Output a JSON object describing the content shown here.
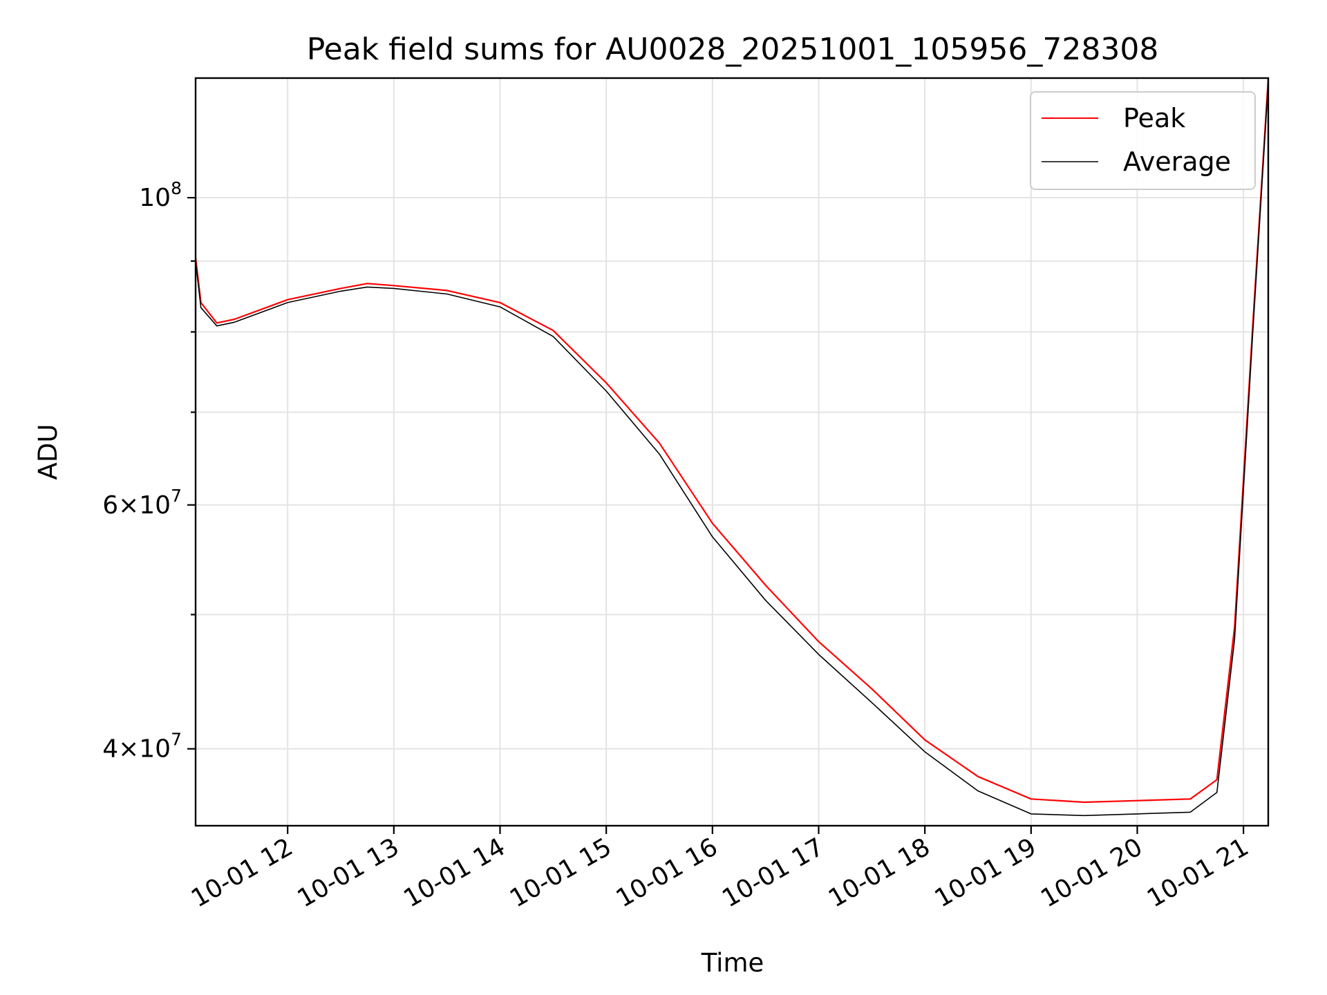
{
  "chart_data": {
    "type": "line",
    "title": "Peak field sums for AU0028_20251001_105956_728308",
    "xlabel": "Time",
    "ylabel": "ADU",
    "yscale": "log",
    "ylim": [
      35200000,
      122000000
    ],
    "xlim": [
      "2025-10-01 11:08",
      "2025-10-01 21:14"
    ],
    "grid": true,
    "legend_position": "top-right",
    "x_ticks": [
      {
        "t": "2025-10-01 12:00",
        "label": "10-01 12"
      },
      {
        "t": "2025-10-01 13:00",
        "label": "10-01 13"
      },
      {
        "t": "2025-10-01 14:00",
        "label": "10-01 14"
      },
      {
        "t": "2025-10-01 15:00",
        "label": "10-01 15"
      },
      {
        "t": "2025-10-01 16:00",
        "label": "10-01 16"
      },
      {
        "t": "2025-10-01 17:00",
        "label": "10-01 17"
      },
      {
        "t": "2025-10-01 18:00",
        "label": "10-01 18"
      },
      {
        "t": "2025-10-01 19:00",
        "label": "10-01 19"
      },
      {
        "t": "2025-10-01 20:00",
        "label": "10-01 20"
      },
      {
        "t": "2025-10-01 21:00",
        "label": "10-01 21"
      }
    ],
    "y_ticks": [
      {
        "value": 40000000,
        "mantissa": "4",
        "exp": "7"
      },
      {
        "value": 60000000,
        "mantissa": "6",
        "exp": "7"
      },
      {
        "value": 100000000,
        "mantissa": "",
        "exp": "8"
      }
    ],
    "y_minor_ticks": [
      50000000,
      70000000,
      80000000,
      90000000
    ],
    "series": [
      {
        "name": "Peak",
        "color": "#ff0000",
        "points": [
          [
            "2025-10-01 11:08",
            90500000
          ],
          [
            "2025-10-01 11:11",
            84000000
          ],
          [
            "2025-10-01 11:20",
            81200000
          ],
          [
            "2025-10-01 11:30",
            81700000
          ],
          [
            "2025-10-01 12:00",
            84400000
          ],
          [
            "2025-10-01 12:30",
            86000000
          ],
          [
            "2025-10-01 12:45",
            86700000
          ],
          [
            "2025-10-01 13:00",
            86400000
          ],
          [
            "2025-10-01 13:30",
            85700000
          ],
          [
            "2025-10-01 14:00",
            84000000
          ],
          [
            "2025-10-01 14:30",
            80200000
          ],
          [
            "2025-10-01 15:00",
            73500000
          ],
          [
            "2025-10-01 15:30",
            66500000
          ],
          [
            "2025-10-01 16:00",
            58200000
          ],
          [
            "2025-10-01 16:30",
            52500000
          ],
          [
            "2025-10-01 17:00",
            47800000
          ],
          [
            "2025-10-01 17:30",
            44200000
          ],
          [
            "2025-10-01 18:00",
            40600000
          ],
          [
            "2025-10-01 18:30",
            38200000
          ],
          [
            "2025-10-01 19:00",
            36800000
          ],
          [
            "2025-10-01 19:30",
            36600000
          ],
          [
            "2025-10-01 20:00",
            36700000
          ],
          [
            "2025-10-01 20:30",
            36800000
          ],
          [
            "2025-10-01 20:45",
            38000000
          ],
          [
            "2025-10-01 20:55",
            49000000
          ],
          [
            "2025-10-01 21:05",
            80000000
          ],
          [
            "2025-10-01 21:14",
            122000000
          ]
        ]
      },
      {
        "name": "Average",
        "color": "#000000",
        "points": [
          [
            "2025-10-01 11:08",
            90000000
          ],
          [
            "2025-10-01 11:11",
            83300000
          ],
          [
            "2025-10-01 11:20",
            80800000
          ],
          [
            "2025-10-01 11:30",
            81300000
          ],
          [
            "2025-10-01 12:00",
            84000000
          ],
          [
            "2025-10-01 12:30",
            85600000
          ],
          [
            "2025-10-01 12:45",
            86200000
          ],
          [
            "2025-10-01 13:00",
            86000000
          ],
          [
            "2025-10-01 13:30",
            85200000
          ],
          [
            "2025-10-01 14:00",
            83400000
          ],
          [
            "2025-10-01 14:30",
            79400000
          ],
          [
            "2025-10-01 15:00",
            72500000
          ],
          [
            "2025-10-01 15:30",
            65300000
          ],
          [
            "2025-10-01 16:00",
            56900000
          ],
          [
            "2025-10-01 16:30",
            51200000
          ],
          [
            "2025-10-01 17:00",
            46800000
          ],
          [
            "2025-10-01 17:30",
            43200000
          ],
          [
            "2025-10-01 18:00",
            39800000
          ],
          [
            "2025-10-01 18:30",
            37300000
          ],
          [
            "2025-10-01 19:00",
            35900000
          ],
          [
            "2025-10-01 19:30",
            35800000
          ],
          [
            "2025-10-01 20:00",
            35900000
          ],
          [
            "2025-10-01 20:30",
            36000000
          ],
          [
            "2025-10-01 20:45",
            37200000
          ],
          [
            "2025-10-01 20:55",
            48000000
          ],
          [
            "2025-10-01 21:05",
            79000000
          ],
          [
            "2025-10-01 21:14",
            121000000
          ]
        ]
      }
    ]
  }
}
